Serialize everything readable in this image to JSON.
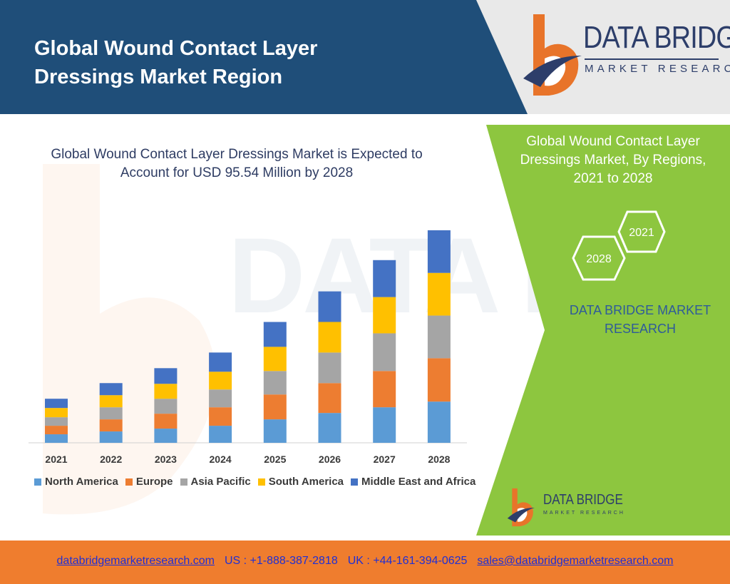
{
  "header": {
    "title_line1": "Global Wound Contact Layer",
    "title_line2": "Dressings Market Region"
  },
  "logo": {
    "name": "DATA BRIDGE",
    "tagline": "MARKET RESEARCH"
  },
  "chart_data": {
    "type": "bar",
    "stacked": true,
    "title": "Global Wound Contact Layer Dressings Market is Expected to Account for USD 95.54 Million by 2028",
    "xlabel": "",
    "ylabel": "",
    "categories": [
      "2021",
      "2022",
      "2023",
      "2024",
      "2025",
      "2026",
      "2027",
      "2028"
    ],
    "series": [
      {
        "name": "North America",
        "color": "#5b9bd5",
        "values": [
          12,
          16,
          20,
          24,
          33,
          42,
          50,
          58
        ]
      },
      {
        "name": "Europe",
        "color": "#ed7d31",
        "values": [
          12,
          17,
          21,
          26,
          35,
          42,
          51,
          61
        ]
      },
      {
        "name": "Asia Pacific",
        "color": "#a5a5a5",
        "values": [
          12,
          17,
          21,
          25,
          33,
          43,
          53,
          60
        ]
      },
      {
        "name": "South America",
        "color": "#ffc000",
        "values": [
          13,
          17,
          21,
          25,
          34,
          43,
          51,
          60
        ]
      },
      {
        "name": "Middle East and Africa",
        "color": "#4472c4",
        "values": [
          13,
          17,
          22,
          27,
          35,
          43,
          52,
          60
        ]
      }
    ],
    "legend_position": "bottom",
    "grid": false
  },
  "side_panel": {
    "title": "Global Wound Contact Layer Dressings Market, By Regions, 2021 to 2028",
    "hex_2021": "2021",
    "hex_2028": "2028",
    "brand_text": "DATA BRIDGE MARKET RESEARCH"
  },
  "watermark_text": "DATA BRIDGE",
  "footer": {
    "website": "databridgemarketresearch.com",
    "us_phone": "US : +1-888-387-2818",
    "uk_phone": "UK : +44-161-394-0625",
    "email": "sales@databridgemarketresearch.com"
  },
  "colors": {
    "header_blue": "#1f4e79",
    "panel_green": "#8dc63f",
    "footer_orange": "#ef7d2e",
    "logo_orange": "#e8742a",
    "logo_navy": "#2d3e6a"
  }
}
